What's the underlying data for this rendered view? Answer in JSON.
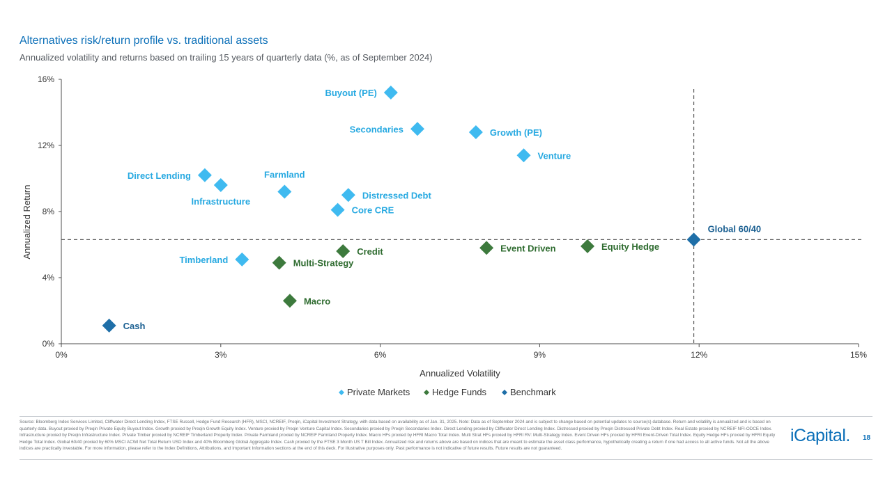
{
  "header": {
    "title": "Alternatives risk/return profile vs. traditional assets",
    "subtitle": "Annualized volatility and returns based on trailing 15 years of quarterly data (%, as of September 2024)"
  },
  "colors": {
    "private_markets": "#3fbaf0",
    "private_markets_label": "#27a9e1",
    "hedge_funds": "#3d7a3d",
    "hedge_funds_label": "#2e6b2f",
    "benchmark": "#1f6fa8",
    "benchmark_label": "#1a5f91",
    "axis": "#4d4d4d",
    "reference_line": "#555555"
  },
  "chart_data": {
    "type": "scatter",
    "xlabel": "Annualized Volatility",
    "ylabel": "Annualized Return",
    "xlim": [
      0,
      15
    ],
    "ylim": [
      0,
      16
    ],
    "x_ticks": [
      0,
      3,
      6,
      9,
      12,
      15
    ],
    "y_ticks": [
      0,
      4,
      8,
      12,
      16
    ],
    "x_tick_labels": [
      "0%",
      "3%",
      "6%",
      "9%",
      "12%",
      "15%"
    ],
    "y_tick_labels": [
      "0%",
      "4%",
      "8%",
      "12%",
      "16%"
    ],
    "reference_lines": {
      "x": 11.9,
      "y": 6.3
    },
    "legend": {
      "position": "bottom",
      "items": [
        {
          "name": "Private Markets",
          "group": "private_markets"
        },
        {
          "name": "Hedge Funds",
          "group": "hedge_funds"
        },
        {
          "name": "Benchmark",
          "group": "benchmark"
        }
      ]
    },
    "series": [
      {
        "name": "Private Markets",
        "group": "private_markets",
        "points": [
          {
            "label": "Buyout (PE)",
            "x": 6.2,
            "y": 15.2,
            "label_pos": "left"
          },
          {
            "label": "Secondaries",
            "x": 6.7,
            "y": 13.0,
            "label_pos": "left"
          },
          {
            "label": "Growth (PE)",
            "x": 7.8,
            "y": 12.8,
            "label_pos": "right"
          },
          {
            "label": "Venture",
            "x": 8.7,
            "y": 11.4,
            "label_pos": "right"
          },
          {
            "label": "Direct Lending",
            "x": 2.7,
            "y": 10.2,
            "label_pos": "left"
          },
          {
            "label": "Infrastructure",
            "x": 3.0,
            "y": 9.6,
            "label_pos": "below"
          },
          {
            "label": "Farmland",
            "x": 4.2,
            "y": 9.2,
            "label_pos": "above"
          },
          {
            "label": "Distressed Debt",
            "x": 5.4,
            "y": 9.0,
            "label_pos": "right"
          },
          {
            "label": "Core CRE",
            "x": 5.2,
            "y": 8.1,
            "label_pos": "right"
          },
          {
            "label": "Timberland",
            "x": 3.4,
            "y": 5.1,
            "label_pos": "left"
          }
        ]
      },
      {
        "name": "Hedge Funds",
        "group": "hedge_funds",
        "points": [
          {
            "label": "Credit",
            "x": 5.3,
            "y": 5.6,
            "label_pos": "right"
          },
          {
            "label": "Event Driven",
            "x": 8.0,
            "y": 5.8,
            "label_pos": "right"
          },
          {
            "label": "Equity Hedge",
            "x": 9.9,
            "y": 5.9,
            "label_pos": "right"
          },
          {
            "label": "Multi-Strategy",
            "x": 4.1,
            "y": 4.9,
            "label_pos": "right"
          },
          {
            "label": "Macro",
            "x": 4.3,
            "y": 2.6,
            "label_pos": "right"
          }
        ]
      },
      {
        "name": "Benchmark",
        "group": "benchmark",
        "points": [
          {
            "label": "Global 60/40",
            "x": 11.9,
            "y": 6.3,
            "label_pos": "above-right"
          },
          {
            "label": "Cash",
            "x": 0.9,
            "y": 1.1,
            "label_pos": "right"
          }
        ]
      }
    ]
  },
  "footer": {
    "source_text": "Source: Bloomberg Index Services Limited, Cliffwater Direct Lending Index, FTSE Russell, Hedge Fund Research (HFR), MSCI, NCREIF, Preqin, iCapital Investment Strategy, with data based on availability as of Jan. 31, 2025. Note: Data as of September 2024 and is subject to change based on potential updates to source(s) database. Return and volatility is annualized and is based on quarterly data. Buyout proxied by Preqin Private Equity Buyout Index. Growth proxied by Preqin Growth Equity Index. Venture proxied by Preqin Venture Capital Index. Secondaries proxied by Preqin Secondaries Index. Direct Lending proxied by Cliffwater Direct Lending Index. Distressed proxied by Preqin Distressed Private Debt Index. Real Estate proxied by NCREIF NFI-ODCE Index. Infrastructure proxied by Preqin Infrastructure Index. Private Timber proxied by NCREIF Timberland Property Index. Private Farmland proxied by NCREIF Farmland Property Index. Macro HFs proxied by HFRI Macro Total Index. Multi Strat HFs proxied by HFRI RV: Multi-Strategy Index. Event Driven HFs proxied by HFRI Event-Driven Total Index. Equity Hedge HFs proxied by HFRI Equity Hedge Total Index. Global 60/40 proxied by 60% MSCI ACWI Net Total Return USD Index and 40% Bloomberg Global Aggregate Index. Cash proxied by the FTSE 3 Month US T Bill Index. Annualized risk and returns above are based on indices that are meant to estimate the asset class performance, hypothetically creating a return if one had access to all active funds. Not all the above indices are practically investable. For more information, please refer to the Index Definitions, Attributions, and Important Information sections at the end of this deck. For illustrative purposes only. Past performance is not indicative of future results. Future results are not guaranteed.",
    "logo_text": "iCapital.",
    "page_number": "18"
  }
}
